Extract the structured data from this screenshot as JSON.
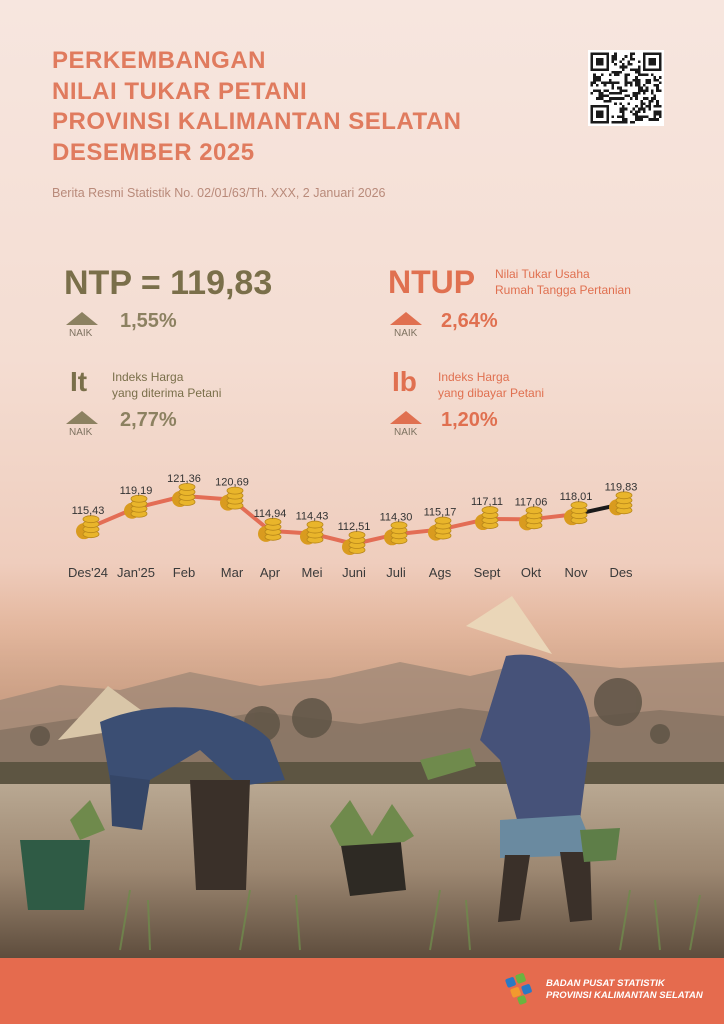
{
  "header": {
    "title_lines": [
      "PERKEMBANGAN",
      "NILAI TUKAR PETANI",
      "PROVINSI KALIMANTAN SELATAN",
      "DESEMBER 2025"
    ],
    "subtitle": "Berita Resmi Statistik No. 02/01/63/Th. XXX, 2 Januari 2026"
  },
  "ntp": {
    "label": "NTP = 119,83",
    "direction": "NAIK",
    "change": "1,55%"
  },
  "ntup": {
    "label": "NTUP",
    "desc_line1": "Nilai Tukar Usaha",
    "desc_line2": "Rumah Tangga Pertanian",
    "direction": "NAIK",
    "change": "2,64%"
  },
  "it": {
    "label": "It",
    "desc_line1": "Indeks Harga",
    "desc_line2": "yang diterima Petani",
    "direction": "NAIK",
    "change": "2,77%"
  },
  "ib": {
    "label": "Ib",
    "desc_line1": "Indeks Harga",
    "desc_line2": "yang dibayar Petani",
    "direction": "NAIK",
    "change": "1,20%"
  },
  "colors": {
    "title": "#e07b5e",
    "olive": "#7a6f4a",
    "accent": "#e07050",
    "line": "#e36d55",
    "coin": "#e9b52b",
    "footer": "#e56b4e"
  },
  "chart_data": {
    "type": "line",
    "categories": [
      "Des'24",
      "Jan'25",
      "Feb",
      "Mar",
      "Apr",
      "Mei",
      "Juni",
      "Juli",
      "Ags",
      "Sept",
      "Okt",
      "Nov",
      "Des"
    ],
    "values": [
      115.43,
      119.19,
      121.36,
      120.69,
      114.94,
      114.43,
      112.51,
      114.3,
      115.17,
      117.11,
      117.06,
      118.01,
      119.83
    ],
    "value_labels": [
      "115,43",
      "119,19",
      "121,36",
      "120,69",
      "114,94",
      "114,43",
      "112,51",
      "114,30",
      "115,17",
      "117,11",
      "117,06",
      "118,01",
      "119,83"
    ],
    "ylim": [
      110,
      124
    ],
    "grid": false,
    "marker_icon": "coin-stack-icon"
  },
  "footer": {
    "org_line1": "BADAN PUSAT STATISTIK",
    "org_line2": "PROVINSI KALIMANTAN SELATAN"
  }
}
